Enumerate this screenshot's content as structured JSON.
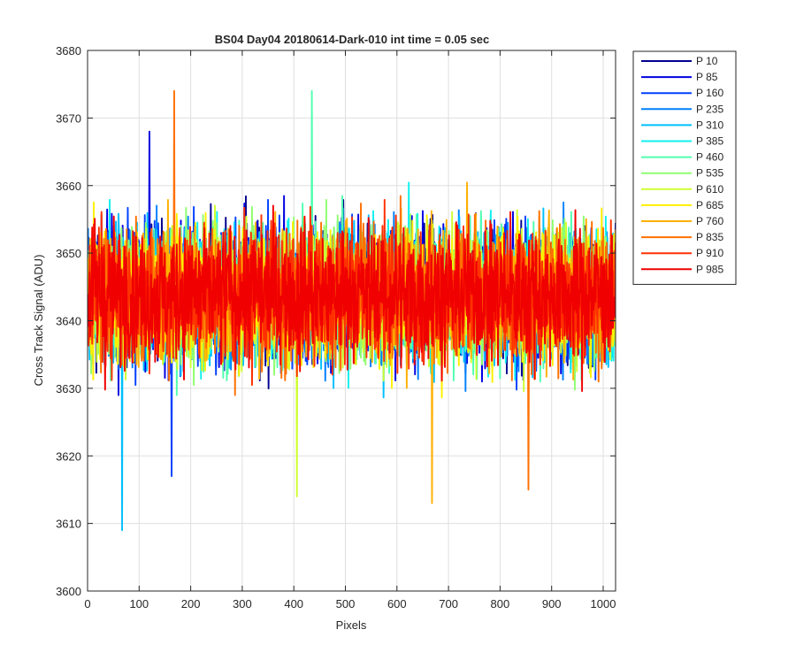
{
  "chart_data": {
    "type": "line",
    "title": "BS04 Day04 20180614-Dark-010 int time = 0.05 sec",
    "xlabel": "Pixels",
    "ylabel": "Cross Track Signal (ADU)",
    "xlim": [
      0,
      1024
    ],
    "ylim": [
      3600,
      3680
    ],
    "x_ticks": [
      0,
      100,
      200,
      300,
      400,
      500,
      600,
      700,
      800,
      900,
      1000
    ],
    "y_ticks": [
      3600,
      3610,
      3620,
      3630,
      3640,
      3650,
      3660,
      3670,
      3680
    ],
    "grid": true,
    "legend_position": "outside-top-right",
    "x_range": [
      1,
      1024
    ],
    "signal_mean": 3644,
    "signal_min": 3609,
    "signal_max": 3674,
    "series": [
      {
        "name": "P 10",
        "color": "#00008F"
      },
      {
        "name": "P 85",
        "color": "#0000E0"
      },
      {
        "name": "P 160",
        "color": "#0040FF"
      },
      {
        "name": "P 235",
        "color": "#0080FF"
      },
      {
        "name": "P 310",
        "color": "#00BFFF"
      },
      {
        "name": "P 385",
        "color": "#10F0EF"
      },
      {
        "name": "P 460",
        "color": "#50FFAF"
      },
      {
        "name": "P 535",
        "color": "#8FFF70"
      },
      {
        "name": "P 610",
        "color": "#CFFF30"
      },
      {
        "name": "P 685",
        "color": "#FFF000"
      },
      {
        "name": "P 760",
        "color": "#FFB000"
      },
      {
        "name": "P 835",
        "color": "#FF7000"
      },
      {
        "name": "P 910",
        "color": "#FF3000"
      },
      {
        "name": "P 985",
        "color": "#F00000"
      }
    ],
    "notable_points": [
      {
        "x": 67,
        "y": 3609,
        "series": "P 310"
      },
      {
        "x": 168,
        "y": 3674,
        "series": "P 835"
      },
      {
        "x": 435,
        "y": 3674,
        "series": "P 460"
      },
      {
        "x": 406,
        "y": 3614,
        "series": "P 610"
      },
      {
        "x": 668,
        "y": 3613,
        "series": "P 760"
      },
      {
        "x": 855,
        "y": 3615,
        "series": "P 835"
      },
      {
        "x": 120,
        "y": 3668,
        "series": "P 85"
      },
      {
        "x": 163,
        "y": 3617,
        "series": "P 160"
      }
    ]
  }
}
